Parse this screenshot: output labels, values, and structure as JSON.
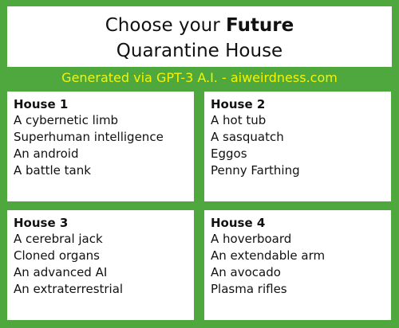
{
  "header": {
    "title_prefix": "Choose your ",
    "title_emphasis": "Future",
    "subtitle": "Quarantine House"
  },
  "credit": "Generated via GPT-3 A.I. - aiweirdness.com",
  "colors": {
    "background": "#4ea83e",
    "credit_text": "#f4f400",
    "card": "#ffffff"
  },
  "houses": [
    {
      "title": "House 1",
      "items": [
        "A cybernetic limb",
        "Superhuman intelligence",
        "An android",
        "A battle tank"
      ]
    },
    {
      "title": "House 2",
      "items": [
        "A hot tub",
        "A sasquatch",
        "Eggos",
        "Penny Farthing"
      ]
    },
    {
      "title": "House 3",
      "items": [
        "A cerebral jack",
        "Cloned organs",
        "An advanced AI",
        "An extraterrestrial"
      ]
    },
    {
      "title": "House 4",
      "items": [
        "A hoverboard",
        "An extendable arm",
        "An avocado",
        "Plasma rifles"
      ]
    }
  ]
}
